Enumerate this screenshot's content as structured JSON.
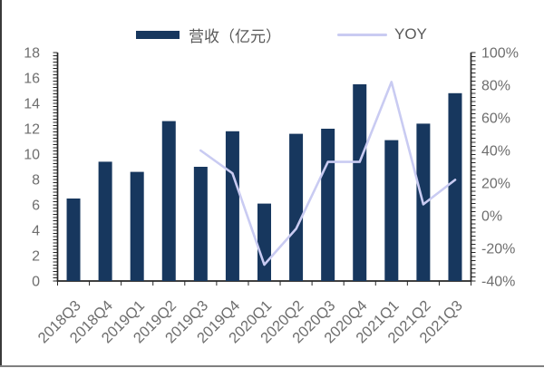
{
  "legend": [
    {
      "label": "营收（亿元）",
      "swatch": "bar",
      "color": "#17375e"
    },
    {
      "label": "YOY",
      "swatch": "line",
      "color": "#c9cbf2"
    }
  ],
  "colors": {
    "bar": "#17375e",
    "line": "#c9cbf2",
    "axis_line": "#262626",
    "axis_text": "#6e6e6e",
    "legend_text": "#595959",
    "background": "#ffffff",
    "page_left_border": "#3a3a3a",
    "page_bottom_border": "#7f7f7f"
  },
  "chart_data": {
    "type": "combo",
    "title": "",
    "xlabel": "",
    "ylabel_left": "",
    "ylabel_right": "",
    "grid": false,
    "legend_position": "top-center",
    "categories": [
      "2018Q3",
      "2018Q4",
      "2019Q1",
      "2019Q2",
      "2019Q3",
      "2019Q4",
      "2020Q1",
      "2020Q2",
      "2020Q3",
      "2020Q4",
      "2021Q1",
      "2021Q2",
      "2021Q3"
    ],
    "series": [
      {
        "name": "营收（亿元）",
        "type": "bar",
        "axis": "left",
        "color": "#17375e",
        "values": [
          6.5,
          9.4,
          8.6,
          12.6,
          9.0,
          11.8,
          6.1,
          11.6,
          12.0,
          15.5,
          11.1,
          12.4,
          14.8
        ]
      },
      {
        "name": "YOY",
        "type": "line",
        "axis": "right",
        "color": "#c9cbf2",
        "values": [
          null,
          null,
          null,
          null,
          40,
          26,
          -30,
          -8,
          33,
          33,
          82,
          7,
          22
        ],
        "unit": "%"
      }
    ],
    "left_axis": {
      "min": 0,
      "max": 18,
      "major_step": 2,
      "minor_step": 0.25,
      "labels": [
        "0",
        "2",
        "4",
        "6",
        "8",
        "10",
        "12",
        "14",
        "16",
        "18"
      ]
    },
    "right_axis": {
      "min": -40,
      "max": 100,
      "major_step": 20,
      "minor_step": 2.5,
      "labels": [
        "-40%",
        "-20%",
        "0%",
        "20%",
        "40%",
        "60%",
        "80%",
        "100%"
      ]
    }
  }
}
